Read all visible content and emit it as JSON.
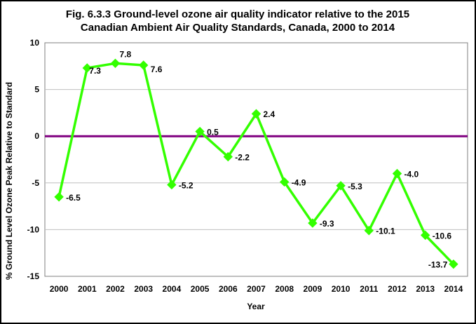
{
  "chart_data": {
    "type": "line",
    "title_lines": [
      "Fig. 6.3.3 Ground-level ozone air quality indicator relative to the 2015",
      "Canadian Ambient Air Quality Standards, Canada, 2000 to 2014"
    ],
    "xlabel": "Year",
    "ylabel": "% Ground Level Ozone Peak Relative to Standard",
    "categories": [
      "2000",
      "2001",
      "2002",
      "2003",
      "2004",
      "2005",
      "2006",
      "2007",
      "2008",
      "2009",
      "2010",
      "2011",
      "2012",
      "2013",
      "2014"
    ],
    "series": [
      {
        "values": [
          -6.5,
          7.3,
          7.8,
          7.6,
          -5.2,
          0.5,
          -2.2,
          2.4,
          -4.9,
          -9.3,
          -5.3,
          -10.1,
          -4.0,
          -10.6,
          -13.7
        ],
        "labels": [
          "-6.5",
          "7.3",
          "7.8",
          "7.6",
          "-5.2",
          "0.5",
          "-2.2",
          "2.4",
          "-4.9",
          "-9.3",
          "-5.3",
          "-10.1",
          "-4.0",
          "-10.6",
          "-13.7"
        ],
        "color": "#33ff00"
      }
    ],
    "ylim": [
      -15,
      10
    ],
    "yticks": [
      -15,
      -10,
      -5,
      0,
      5,
      10
    ],
    "ytick_labels": [
      "-15",
      "-10",
      "-5",
      "0",
      "5",
      "10"
    ],
    "reference_line": {
      "value": 0,
      "color": "#800080"
    },
    "grid": true,
    "legend": false
  }
}
